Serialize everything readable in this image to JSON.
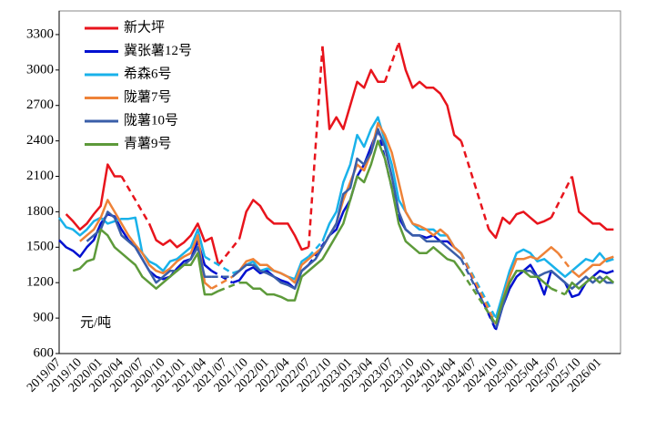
{
  "chart_data": {
    "type": "line",
    "unit_label": "元/吨",
    "legend": "upper left",
    "categories": [
      "2019/07",
      null,
      null,
      "2019/10",
      null,
      null,
      "2020/01",
      null,
      null,
      "2020/04",
      null,
      null,
      "2020/07",
      null,
      null,
      "2020/10",
      null,
      null,
      "2021/01",
      null,
      null,
      "2021/04",
      null,
      null,
      "2021/07",
      null,
      null,
      "2021/10",
      null,
      null,
      "2022/01",
      null,
      null,
      "2022/04",
      null,
      null,
      "2022/07",
      null,
      null,
      "2022/10",
      null,
      null,
      "2023/01",
      null,
      null,
      "2023/04",
      null,
      null,
      "2023/07",
      null,
      null,
      "2023/10",
      null,
      null,
      "2024/01",
      null,
      null,
      "2024/04",
      null,
      null,
      "2024/07",
      null,
      null,
      "2024/10",
      null,
      null,
      "2025/01",
      null,
      null,
      "2025/04",
      null,
      null,
      "2025/07",
      null,
      null,
      "2025/10",
      null,
      null,
      "2026/01",
      null,
      null
    ],
    "ylim": [
      600,
      3500
    ],
    "yticks": [
      600,
      900,
      1200,
      1500,
      1800,
      2100,
      2400,
      2700,
      3000,
      3300
    ],
    "series": [
      {
        "name": "新大坪",
        "color": "#e8141c",
        "values": [
          null,
          1780,
          1720,
          1650,
          1700,
          1780,
          1850,
          2200,
          2100,
          2100,
          null,
          null,
          null,
          1700,
          1560,
          1520,
          1560,
          1500,
          1540,
          1600,
          1700,
          1550,
          1580,
          1350,
          null,
          null,
          1570,
          1800,
          1900,
          1850,
          1750,
          1700,
          1700,
          1700,
          1600,
          1480,
          1500,
          null,
          3200,
          2500,
          2600,
          2500,
          2700,
          2900,
          2850,
          3000,
          2900,
          2900,
          null,
          3230,
          3000,
          2850,
          2900,
          2850,
          2850,
          2800,
          2700,
          2450,
          2400,
          null,
          null,
          null,
          1650,
          1580,
          1750,
          1700,
          1780,
          1800,
          1750,
          1700,
          1720,
          1750,
          null,
          null,
          2100,
          1800,
          1750,
          1700,
          1700,
          1650,
          1650
        ]
      },
      {
        "name": "冀张薯12号",
        "color": "#0010d0",
        "values": [
          1560,
          1500,
          1470,
          1420,
          1500,
          1560,
          1700,
          1780,
          1760,
          1650,
          1560,
          1500,
          1400,
          1300,
          1250,
          1230,
          1250,
          1320,
          1380,
          1400,
          1550,
          1350,
          1300,
          null,
          null,
          1200,
          1220,
          1300,
          1330,
          1280,
          1300,
          1250,
          1220,
          1200,
          1150,
          1300,
          1350,
          null,
          null,
          1600,
          1650,
          1800,
          1900,
          2100,
          2200,
          2350,
          2500,
          null,
          null,
          1750,
          1650,
          1600,
          1600,
          1580,
          1600,
          1550,
          1550,
          1500,
          1450,
          null,
          null,
          null,
          null,
          800,
          1000,
          1150,
          1250,
          1300,
          1350,
          1250,
          1100,
          1300,
          1250,
          1200,
          1080,
          1100,
          1200,
          1250,
          1300,
          1280,
          1300
        ]
      },
      {
        "name": "希森6号",
        "color": "#19b2ea",
        "values": [
          1750,
          1670,
          1650,
          1600,
          1650,
          1720,
          1750,
          1700,
          1720,
          1740,
          1740,
          1750,
          1450,
          1380,
          1350,
          1300,
          1380,
          1400,
          1450,
          1500,
          1650,
          1420,
          null,
          null,
          null,
          1280,
          1300,
          1350,
          1380,
          1300,
          1320,
          1300,
          1280,
          1250,
          1230,
          1380,
          1420,
          null,
          1550,
          1700,
          1800,
          2050,
          2200,
          2450,
          2350,
          2500,
          2600,
          2400,
          2200,
          1900,
          1800,
          1700,
          1650,
          1650,
          1650,
          1600,
          1600,
          1500,
          1450,
          null,
          null,
          null,
          null,
          900,
          1100,
          1300,
          1450,
          1480,
          1450,
          1380,
          1400,
          1350,
          1300,
          1250,
          1300,
          1350,
          1400,
          1380,
          1450,
          1380,
          1400
        ]
      },
      {
        "name": "陇薯7号",
        "color": "#ee8238",
        "values": [
          null,
          null,
          null,
          1550,
          1600,
          1650,
          1750,
          1900,
          1800,
          1700,
          1600,
          1520,
          1450,
          1350,
          1300,
          1280,
          1320,
          1380,
          1420,
          1450,
          1600,
          1200,
          1150,
          null,
          null,
          1250,
          1300,
          1380,
          1400,
          1350,
          1350,
          1300,
          1280,
          1250,
          1200,
          1350,
          1400,
          1450,
          1500,
          1600,
          1700,
          1900,
          2050,
          2200,
          2150,
          2300,
          2550,
          2450,
          2300,
          2050,
          1800,
          1700,
          1680,
          1650,
          1600,
          1650,
          1600,
          1500,
          1450,
          null,
          null,
          null,
          null,
          850,
          1050,
          1250,
          1400,
          1400,
          1420,
          1400,
          1450,
          1500,
          1450,
          null,
          1300,
          1250,
          1300,
          1350,
          1350,
          1400,
          1420
        ]
      },
      {
        "name": "陇薯10号",
        "color": "#3a5ea8",
        "values": [
          null,
          null,
          null,
          null,
          1550,
          1600,
          1650,
          1800,
          1750,
          1600,
          1550,
          1500,
          1400,
          1300,
          1200,
          1250,
          1300,
          1300,
          1350,
          1400,
          1500,
          1250,
          1250,
          null,
          null,
          1250,
          1300,
          1350,
          1350,
          1300,
          1280,
          1250,
          1200,
          1180,
          1150,
          1300,
          1350,
          1400,
          1500,
          1600,
          1700,
          1950,
          2000,
          2250,
          2200,
          2300,
          2500,
          2350,
          2100,
          1800,
          1650,
          1600,
          1600,
          1550,
          1550,
          1550,
          1500,
          1450,
          1400,
          null,
          null,
          null,
          null,
          820,
          1000,
          1200,
          1300,
          1300,
          1300,
          1250,
          1280,
          1300,
          1250,
          1200,
          1150,
          1200,
          1250,
          1200,
          1250,
          1200,
          1200
        ]
      },
      {
        "name": "青薯9号",
        "color": "#5d9a3a",
        "values": [
          null,
          null,
          1300,
          1320,
          1380,
          1400,
          1650,
          1600,
          1500,
          1450,
          1400,
          1350,
          1250,
          1200,
          1150,
          1200,
          1250,
          1300,
          1350,
          1350,
          1450,
          1100,
          1100,
          1130,
          null,
          null,
          1200,
          1200,
          1150,
          1150,
          1100,
          1100,
          1080,
          1050,
          1050,
          1250,
          1300,
          1350,
          1400,
          1500,
          1600,
          1700,
          1900,
          2100,
          2050,
          2200,
          2400,
          2250,
          2000,
          1700,
          1550,
          1500,
          1450,
          1450,
          1500,
          1450,
          1400,
          1380,
          1300,
          null,
          null,
          null,
          null,
          850,
          1050,
          1200,
          1300,
          1300,
          1250,
          1250,
          1200,
          1150,
          null,
          1100,
          1200,
          1150,
          1200,
          1250,
          1200,
          1250,
          1200
        ]
      }
    ]
  }
}
